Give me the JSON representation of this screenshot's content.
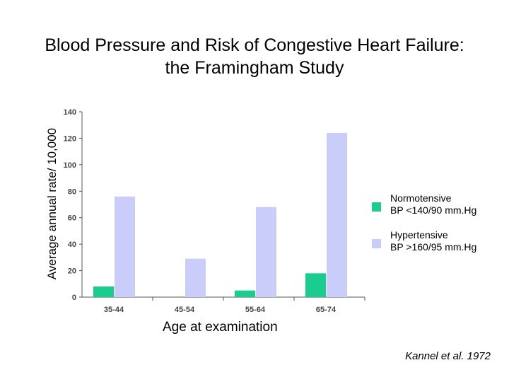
{
  "title": {
    "line1": "Blood Pressure and Risk of Congestive Heart Failure:",
    "line2": "the Framingham Study"
  },
  "source": "Kannel et al. 1972",
  "colors": {
    "normotensive": "#1bcc8f",
    "hypertensive": "#cacdfa",
    "axis": "#555555"
  },
  "legend": [
    {
      "line1": "Normotensive",
      "line2": "BP <140/90 mm.Hg"
    },
    {
      "line1": "Hypertensive",
      "line2": "BP >160/95 mm.Hg"
    }
  ],
  "chart_data": {
    "type": "bar",
    "title": "Blood Pressure and Risk of Congestive Heart Failure: the Framingham Study",
    "xlabel": "Age at examination",
    "ylabel": "Average annual rate/ 10,000",
    "categories": [
      "35-44",
      "45-54",
      "55-64",
      "65-74"
    ],
    "series": [
      {
        "name": "Normotensive BP <140/90 mm.Hg",
        "values": [
          8,
          0,
          5,
          18
        ]
      },
      {
        "name": "Hypertensive BP >160/95 mm.Hg",
        "values": [
          76,
          29,
          68,
          124
        ]
      }
    ],
    "ylim": [
      0,
      140
    ],
    "yticks": [
      0,
      20,
      40,
      60,
      80,
      100,
      120,
      140
    ],
    "grid": false,
    "legend_position": "right"
  }
}
